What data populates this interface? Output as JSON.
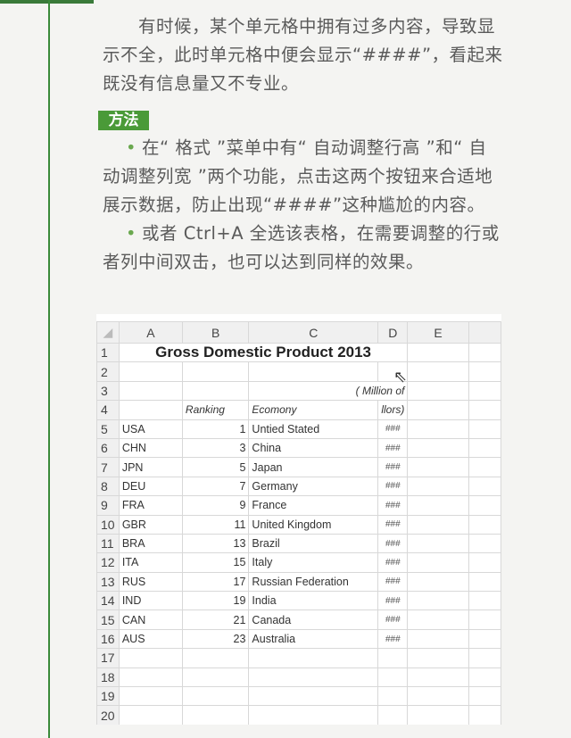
{
  "intro": "有时候，某个单元格中拥有过多内容，导致显示不全，此时单元格中便会显示“####”，看起来既没有信息量又不专业。",
  "method_label": "方法",
  "bullets": [
    "在“ 格式 ”菜单中有“ 自动调整行高 ”和“ 自动调整列宽 ”两个功能，点击这两个按钮来合适地展示数据，防止出现“####”这种尴尬的内容。",
    "或者 Ctrl+A 全选该表格，在需要调整的行或者列中间双击，也可以达到同样的效果。"
  ],
  "sheet": {
    "columns": [
      "A",
      "B",
      "C",
      "D",
      "E",
      ""
    ],
    "title": "Gross Domestic Product 2013",
    "unit_note": "( Million of",
    "unit_note_tail": "llors)",
    "headers": {
      "ranking": "Ranking",
      "economy": "Ecomony"
    },
    "rows": [
      {
        "code": "USA",
        "rank": "1",
        "name": "Untied Stated",
        "value": "###"
      },
      {
        "code": "CHN",
        "rank": "3",
        "name": "China",
        "value": "###"
      },
      {
        "code": "JPN",
        "rank": "5",
        "name": "Japan",
        "value": "###"
      },
      {
        "code": "DEU",
        "rank": "7",
        "name": "Germany",
        "value": "###"
      },
      {
        "code": "FRA",
        "rank": "9",
        "name": "France",
        "value": "###"
      },
      {
        "code": "GBR",
        "rank": "11",
        "name": "United Kingdom",
        "value": "###"
      },
      {
        "code": "BRA",
        "rank": "13",
        "name": "Brazil",
        "value": "###"
      },
      {
        "code": "ITA",
        "rank": "15",
        "name": "Italy",
        "value": "###"
      },
      {
        "code": "RUS",
        "rank": "17",
        "name": "Russian Federation",
        "value": "###"
      },
      {
        "code": "IND",
        "rank": "19",
        "name": "India",
        "value": "###"
      },
      {
        "code": "CAN",
        "rank": "21",
        "name": "Canada",
        "value": "###"
      },
      {
        "code": "AUS",
        "rank": "23",
        "name": "Australia",
        "value": "###"
      }
    ],
    "row_numbers": [
      "1",
      "2",
      "3",
      "4",
      "5",
      "6",
      "7",
      "8",
      "9",
      "10",
      "11",
      "12",
      "13",
      "14",
      "15",
      "16",
      "17",
      "18",
      "19",
      "20"
    ]
  }
}
